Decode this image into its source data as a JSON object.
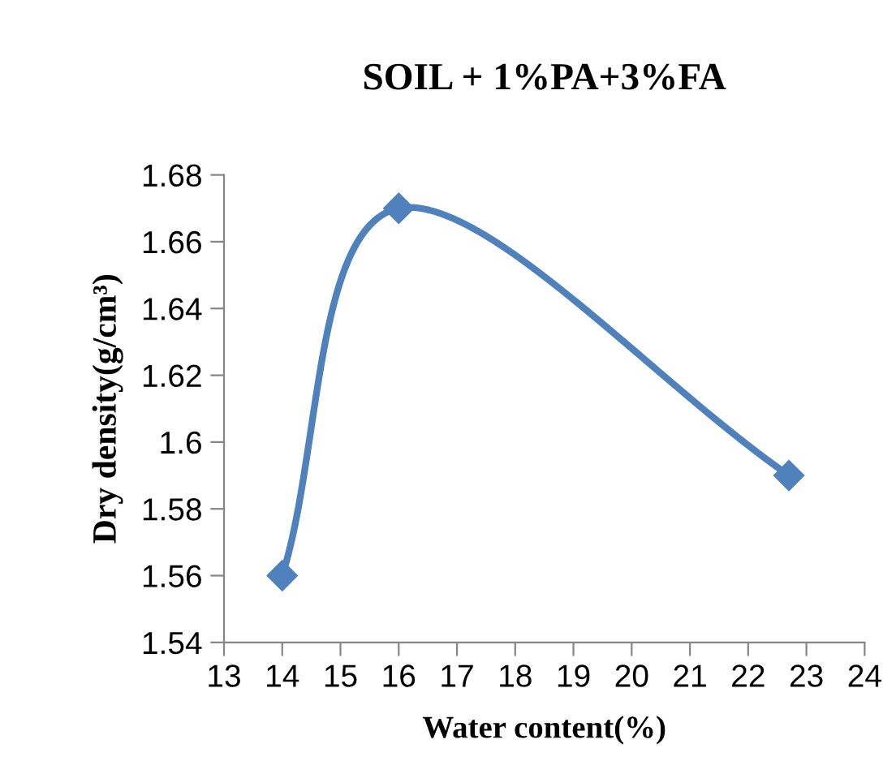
{
  "chart_data": {
    "type": "line",
    "title": "SOIL + 1%PA+3%FA",
    "xlabel": "Water content(%)",
    "ylabel": "Dry density(g/cm³)",
    "x": [
      14,
      16,
      22.7
    ],
    "series": [
      {
        "color": "#4f81bd",
        "values": [
          1.56,
          1.67,
          1.59
        ]
      }
    ],
    "xlim": [
      13,
      24
    ],
    "xticks": [
      13,
      14,
      15,
      16,
      17,
      18,
      19,
      20,
      21,
      22,
      23,
      24
    ],
    "ylim": [
      1.54,
      1.68
    ],
    "yticks": [
      {
        "value": 1.54,
        "label": "1.54"
      },
      {
        "value": 1.56,
        "label": "1.56"
      },
      {
        "value": 1.58,
        "label": "1.58"
      },
      {
        "value": 1.6,
        "label": "1.6"
      },
      {
        "value": 1.62,
        "label": "1.62"
      },
      {
        "value": 1.64,
        "label": "1.64"
      },
      {
        "value": 1.66,
        "label": "1.66"
      },
      {
        "value": 1.68,
        "label": "1.68"
      }
    ],
    "grid": false,
    "marker": "diamond",
    "line_style": "solid"
  }
}
